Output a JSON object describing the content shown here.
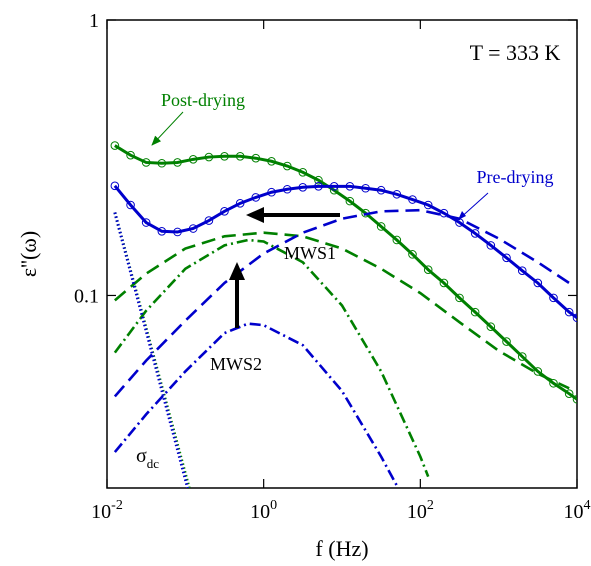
{
  "chart_data": {
    "type": "line",
    "xscale": "log",
    "yscale": "log",
    "x_label": "f (Hz)",
    "y_label": "ε''(ω)",
    "xlim": [
      0.01,
      10000
    ],
    "ylim": [
      0.02,
      1
    ],
    "xticks": [
      {
        "value": 0.01,
        "label": "10",
        "superscript": "-2"
      },
      {
        "value": 1,
        "label": "10",
        "superscript": "0"
      },
      {
        "value": 100,
        "label": "10",
        "superscript": "2"
      },
      {
        "value": 10000,
        "label": "10",
        "superscript": "4"
      }
    ],
    "yticks": [
      1,
      0.1
    ],
    "annotations": {
      "temperature": "T = 333 K",
      "post": "Post-drying",
      "pre": "Pre-drying",
      "mws1": "MWS1",
      "mws2": "MWS2",
      "sigma": {
        "text": "σ",
        "subscript": "dc"
      }
    },
    "series": [
      {
        "name": "Post-drying",
        "color": "#008000",
        "style": "solid",
        "marker": "circle",
        "x": [
          0.0126,
          0.02,
          0.0316,
          0.0501,
          0.0794,
          0.126,
          0.2,
          0.316,
          0.501,
          0.794,
          1.26,
          2,
          3.16,
          5.01,
          7.94,
          12.6,
          20,
          31.6,
          50.1,
          79.4,
          126,
          200,
          316,
          501,
          794,
          1260,
          2000,
          3160,
          5010,
          7940,
          10000
        ],
        "values": [
          0.35,
          0.323,
          0.304,
          0.302,
          0.304,
          0.312,
          0.318,
          0.32,
          0.32,
          0.315,
          0.307,
          0.295,
          0.28,
          0.262,
          0.241,
          0.22,
          0.199,
          0.178,
          0.159,
          0.141,
          0.124,
          0.111,
          0.098,
          0.087,
          0.077,
          0.068,
          0.06,
          0.053,
          0.048,
          0.044,
          0.042
        ]
      },
      {
        "name": "Pre-drying",
        "color": "#0000cc",
        "style": "solid",
        "marker": "circle",
        "x": [
          0.0126,
          0.02,
          0.0316,
          0.0501,
          0.0794,
          0.126,
          0.2,
          0.316,
          0.501,
          0.794,
          1.26,
          2,
          3.16,
          5.01,
          7.94,
          12.6,
          20,
          31.6,
          50.1,
          79.4,
          126,
          200,
          316,
          501,
          794,
          1260,
          2000,
          3160,
          5010,
          7940,
          10000
        ],
        "values": [
          0.25,
          0.213,
          0.184,
          0.171,
          0.17,
          0.175,
          0.187,
          0.202,
          0.216,
          0.227,
          0.237,
          0.243,
          0.247,
          0.249,
          0.249,
          0.249,
          0.245,
          0.241,
          0.233,
          0.223,
          0.213,
          0.199,
          0.184,
          0.168,
          0.152,
          0.137,
          0.123,
          0.111,
          0.098,
          0.087,
          0.083
        ]
      },
      {
        "color": "#008000",
        "style": "dashed",
        "x": [
          0.0126,
          0.0316,
          0.1,
          0.316,
          1,
          3.16,
          10,
          31.6,
          100,
          316,
          1000,
          3160,
          7940
        ],
        "values": [
          0.096,
          0.12,
          0.148,
          0.164,
          0.169,
          0.164,
          0.148,
          0.125,
          0.102,
          0.08,
          0.063,
          0.052,
          0.046
        ]
      },
      {
        "color": "#0000cc",
        "style": "dashed",
        "x": [
          0.0126,
          0.0316,
          0.1,
          0.316,
          1,
          3.16,
          10,
          31.6,
          100,
          316,
          1000,
          3160,
          7940
        ],
        "values": [
          0.043,
          0.058,
          0.081,
          0.111,
          0.142,
          0.169,
          0.19,
          0.202,
          0.204,
          0.19,
          0.161,
          0.132,
          0.111
        ]
      },
      {
        "color": "#008000",
        "style": "dashdot",
        "x": [
          0.0126,
          0.0316,
          0.1,
          0.316,
          0.631,
          1,
          3.16,
          10,
          31.6,
          100,
          126
        ],
        "values": [
          0.062,
          0.088,
          0.125,
          0.152,
          0.159,
          0.157,
          0.132,
          0.092,
          0.053,
          0.026,
          0.022
        ]
      },
      {
        "color": "#0000cc",
        "style": "dashdot",
        "x": [
          0.0126,
          0.0316,
          0.1,
          0.316,
          0.631,
          1,
          3.16,
          10,
          31.6,
          50.1
        ],
        "values": [
          0.027,
          0.037,
          0.053,
          0.073,
          0.079,
          0.078,
          0.066,
          0.045,
          0.026,
          0.0204
        ]
      },
      {
        "color": "#008000",
        "style": "dotted",
        "x": [
          0.0126,
          0.112
        ],
        "values": [
          0.2,
          0.02
        ]
      },
      {
        "color": "#0000cc",
        "style": "dotted",
        "x": [
          0.0126,
          0.107
        ],
        "values": [
          0.2,
          0.02
        ]
      }
    ]
  }
}
